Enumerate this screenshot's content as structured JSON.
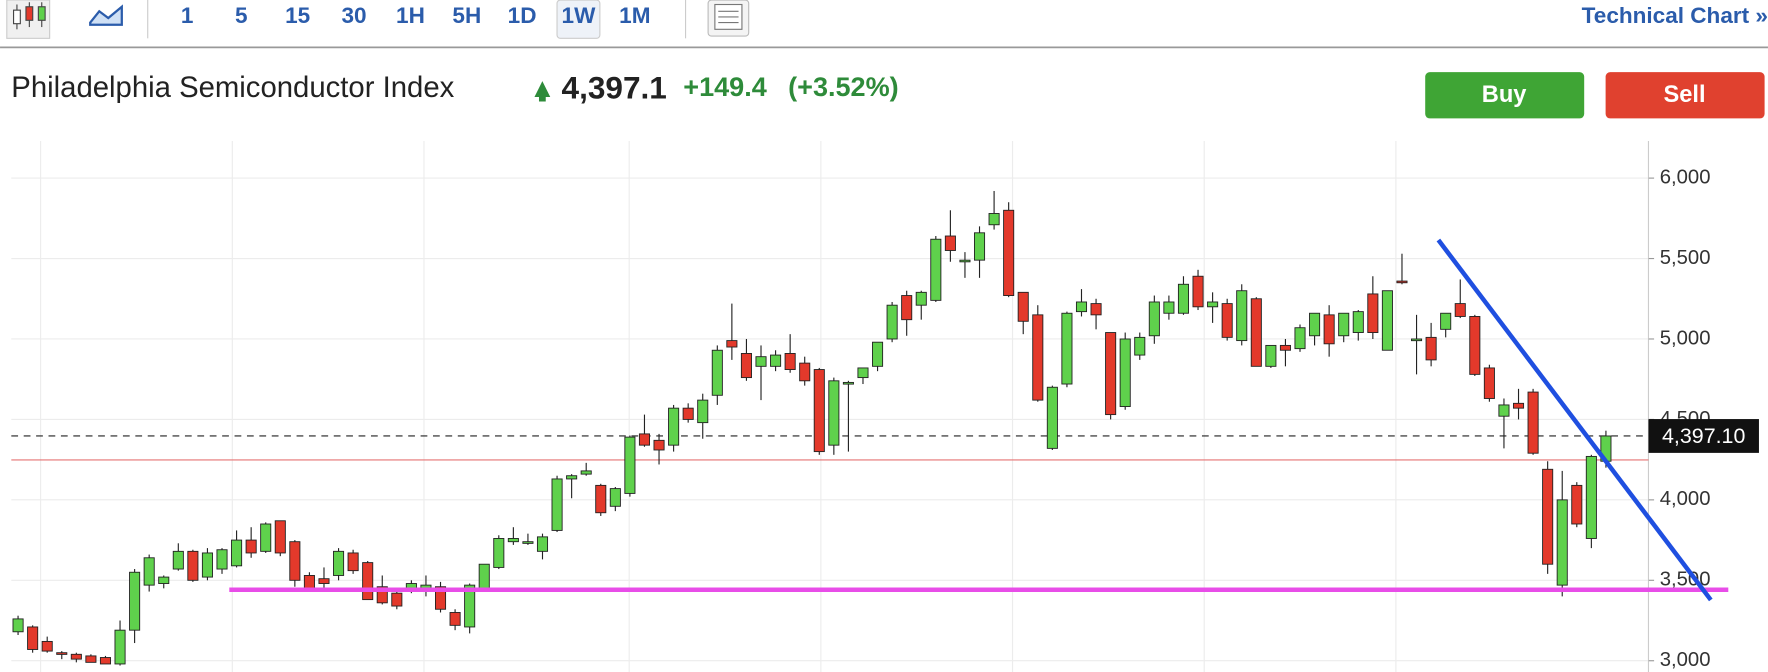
{
  "toolbar": {
    "intervals": [
      "1",
      "5",
      "15",
      "30",
      "1H",
      "5H",
      "1D",
      "1W",
      "1M"
    ],
    "selected": 7,
    "technical_chart": "Technical Chart »"
  },
  "header": {
    "title": "Philadelphia Semiconductor Index",
    "price": "4,397.1",
    "change": "+149.4",
    "change_pct": "(+3.52%)",
    "buy": "Buy",
    "sell": "Sell"
  },
  "chart_data": {
    "type": "candlestick",
    "up_color": "#5fd14c",
    "down_color": "#e3392b",
    "ylim": [
      2930,
      6231
    ],
    "yticks": [
      {
        "value": 3000,
        "label": "3,000"
      },
      {
        "value": 3500,
        "label": "3,500"
      },
      {
        "value": 4000,
        "label": "4,000"
      },
      {
        "value": 4500,
        "label": "4,500"
      },
      {
        "value": 5000,
        "label": "5,000"
      },
      {
        "value": 5500,
        "label": "5,500"
      },
      {
        "value": 6000,
        "label": "6,000"
      }
    ],
    "grid": true,
    "open": [
      3180,
      3210,
      3120,
      3050,
      3040,
      3030,
      3020,
      2980,
      3190,
      3470,
      3480,
      3570,
      3680,
      3520,
      3570,
      3590,
      3750,
      3680,
      3870,
      3740,
      3530,
      3510,
      3530,
      3670,
      3610,
      3460,
      3420,
      3440,
      3450,
      3460,
      3300,
      3210,
      3450,
      3580,
      3740,
      3740,
      3680,
      3810,
      4130,
      4160,
      4090,
      3960,
      4040,
      4410,
      4370,
      4340,
      4570,
      4480,
      4650,
      4990,
      4910,
      4830,
      4830,
      4910,
      4850,
      4810,
      4340,
      4720,
      4760,
      4830,
      5000,
      5270,
      5210,
      5240,
      5640,
      5480,
      5490,
      5710,
      5800,
      5290,
      5150,
      4320,
      4720,
      5170,
      5220,
      5040,
      4580,
      4900,
      5020,
      5160,
      5160,
      5390,
      5200,
      5220,
      4990,
      5250,
      4830,
      4960,
      4940,
      5020,
      5150,
      5020,
      5040,
      5280,
      4930,
      5360,
      5000,
      5010,
      5060,
      5220,
      5140,
      4820,
      4520,
      4600,
      4670,
      4190,
      3470,
      4090,
      3760,
      4240
    ],
    "high": [
      3280,
      3220,
      3150,
      3060,
      3050,
      3040,
      3030,
      3250,
      3570,
      3660,
      3530,
      3730,
      3690,
      3700,
      3700,
      3810,
      3830,
      3860,
      3870,
      3750,
      3550,
      3580,
      3700,
      3690,
      3620,
      3530,
      3450,
      3500,
      3530,
      3490,
      3320,
      3480,
      3600,
      3780,
      3830,
      3790,
      3790,
      4150,
      4160,
      4230,
      4100,
      4080,
      4400,
      4530,
      4410,
      4590,
      4600,
      4660,
      4960,
      5220,
      5000,
      4960,
      4930,
      5030,
      4890,
      4820,
      4760,
      4740,
      4810,
      4980,
      5230,
      5300,
      5300,
      5640,
      5800,
      5540,
      5700,
      5920,
      5850,
      5290,
      5210,
      4710,
      5170,
      5310,
      5250,
      5040,
      5040,
      5040,
      5270,
      5270,
      5390,
      5430,
      5290,
      5250,
      5340,
      5260,
      4960,
      5000,
      5090,
      5160,
      5210,
      5160,
      5180,
      5390,
      5300,
      5530,
      5150,
      5100,
      5160,
      5370,
      5150,
      4840,
      4630,
      4690,
      4690,
      4240,
      4180,
      4110,
      4280,
      4430
    ],
    "low": [
      3160,
      3050,
      3050,
      3010,
      2990,
      2990,
      2980,
      2970,
      3110,
      3430,
      3450,
      3560,
      3490,
      3500,
      3540,
      3580,
      3640,
      3670,
      3650,
      3460,
      3440,
      3440,
      3500,
      3540,
      3380,
      3350,
      3320,
      3420,
      3400,
      3300,
      3190,
      3170,
      3440,
      3570,
      3720,
      3720,
      3630,
      3800,
      4010,
      4150,
      3900,
      3930,
      4020,
      4330,
      4220,
      4300,
      4480,
      4380,
      4590,
      4870,
      4740,
      4620,
      4800,
      4790,
      4710,
      4280,
      4280,
      4300,
      4720,
      4800,
      4980,
      5020,
      5120,
      5230,
      5480,
      5380,
      5380,
      5680,
      5260,
      5030,
      4610,
      4310,
      4700,
      5140,
      5060,
      4500,
      4560,
      4870,
      4970,
      5120,
      5150,
      5180,
      5100,
      4990,
      4960,
      4830,
      4820,
      4830,
      4920,
      4960,
      4890,
      4980,
      4990,
      5000,
      4930,
      5340,
      4780,
      4830,
      5010,
      5130,
      4770,
      4610,
      4320,
      4500,
      4280,
      3540,
      3400,
      3830,
      3700,
      4200
    ],
    "close": [
      3260,
      3070,
      3060,
      3040,
      3010,
      2990,
      2980,
      3190,
      3550,
      3640,
      3520,
      3680,
      3500,
      3670,
      3690,
      3750,
      3670,
      3850,
      3670,
      3500,
      3450,
      3480,
      3680,
      3560,
      3380,
      3360,
      3340,
      3480,
      3470,
      3320,
      3220,
      3470,
      3600,
      3760,
      3760,
      3740,
      3770,
      4130,
      4150,
      4180,
      3920,
      4070,
      4390,
      4340,
      4310,
      4570,
      4500,
      4620,
      4930,
      4950,
      4760,
      4890,
      4900,
      4810,
      4740,
      4300,
      4740,
      4730,
      4820,
      4980,
      5210,
      5120,
      5290,
      5620,
      5550,
      5490,
      5660,
      5780,
      5270,
      5110,
      4620,
      4700,
      5160,
      5230,
      5150,
      4530,
      5000,
      5010,
      5230,
      5230,
      5340,
      5200,
      5230,
      5010,
      5300,
      4830,
      4960,
      4930,
      5070,
      5160,
      4970,
      5160,
      5170,
      5040,
      5300,
      5350,
      5000,
      4870,
      5160,
      5140,
      4780,
      4630,
      4590,
      4570,
      4290,
      3600,
      4000,
      3850,
      4270,
      4397.1
    ],
    "last_price_label": "4,397.10",
    "hlines": [
      {
        "value": 4248,
        "color": "#e57373"
      }
    ],
    "trendlines": [
      {
        "color": "#e84de8",
        "x": [
          14.5,
          117.4
        ],
        "y": [
          3441,
          3441
        ]
      },
      {
        "color": "#1f4fe0",
        "x": [
          97.5,
          116.2
        ],
        "y": [
          5615,
          3378
        ]
      }
    ]
  }
}
